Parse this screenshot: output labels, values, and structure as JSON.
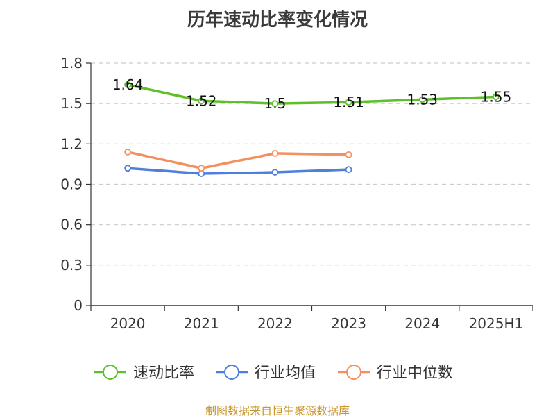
{
  "chart_data": {
    "type": "line",
    "title": "历年速动比率变化情况",
    "categories": [
      "2020",
      "2021",
      "2022",
      "2023",
      "2024",
      "2025H1"
    ],
    "y_ticks": [
      "0",
      "0.3",
      "0.6",
      "0.9",
      "1.2",
      "1.5",
      "1.8"
    ],
    "ylim": [
      0,
      1.8
    ],
    "grid": true,
    "legend_position": "bottom",
    "series": [
      {
        "name": "速动比率",
        "color": "#5dbf2a",
        "values": [
          1.64,
          1.52,
          1.5,
          1.51,
          1.53,
          1.55
        ],
        "labels": [
          "1.64",
          "1.52",
          "1.5",
          "1.51",
          "1.53",
          "1.55"
        ]
      },
      {
        "name": "行业均值",
        "color": "#4f7fdc",
        "values": [
          1.02,
          0.98,
          0.99,
          1.01,
          null,
          null
        ]
      },
      {
        "name": "行业中位数",
        "color": "#f39060",
        "values": [
          1.14,
          1.02,
          1.13,
          1.12,
          null,
          null
        ]
      }
    ]
  },
  "footer": {
    "source": "制图数据来自恒生聚源数据库"
  }
}
